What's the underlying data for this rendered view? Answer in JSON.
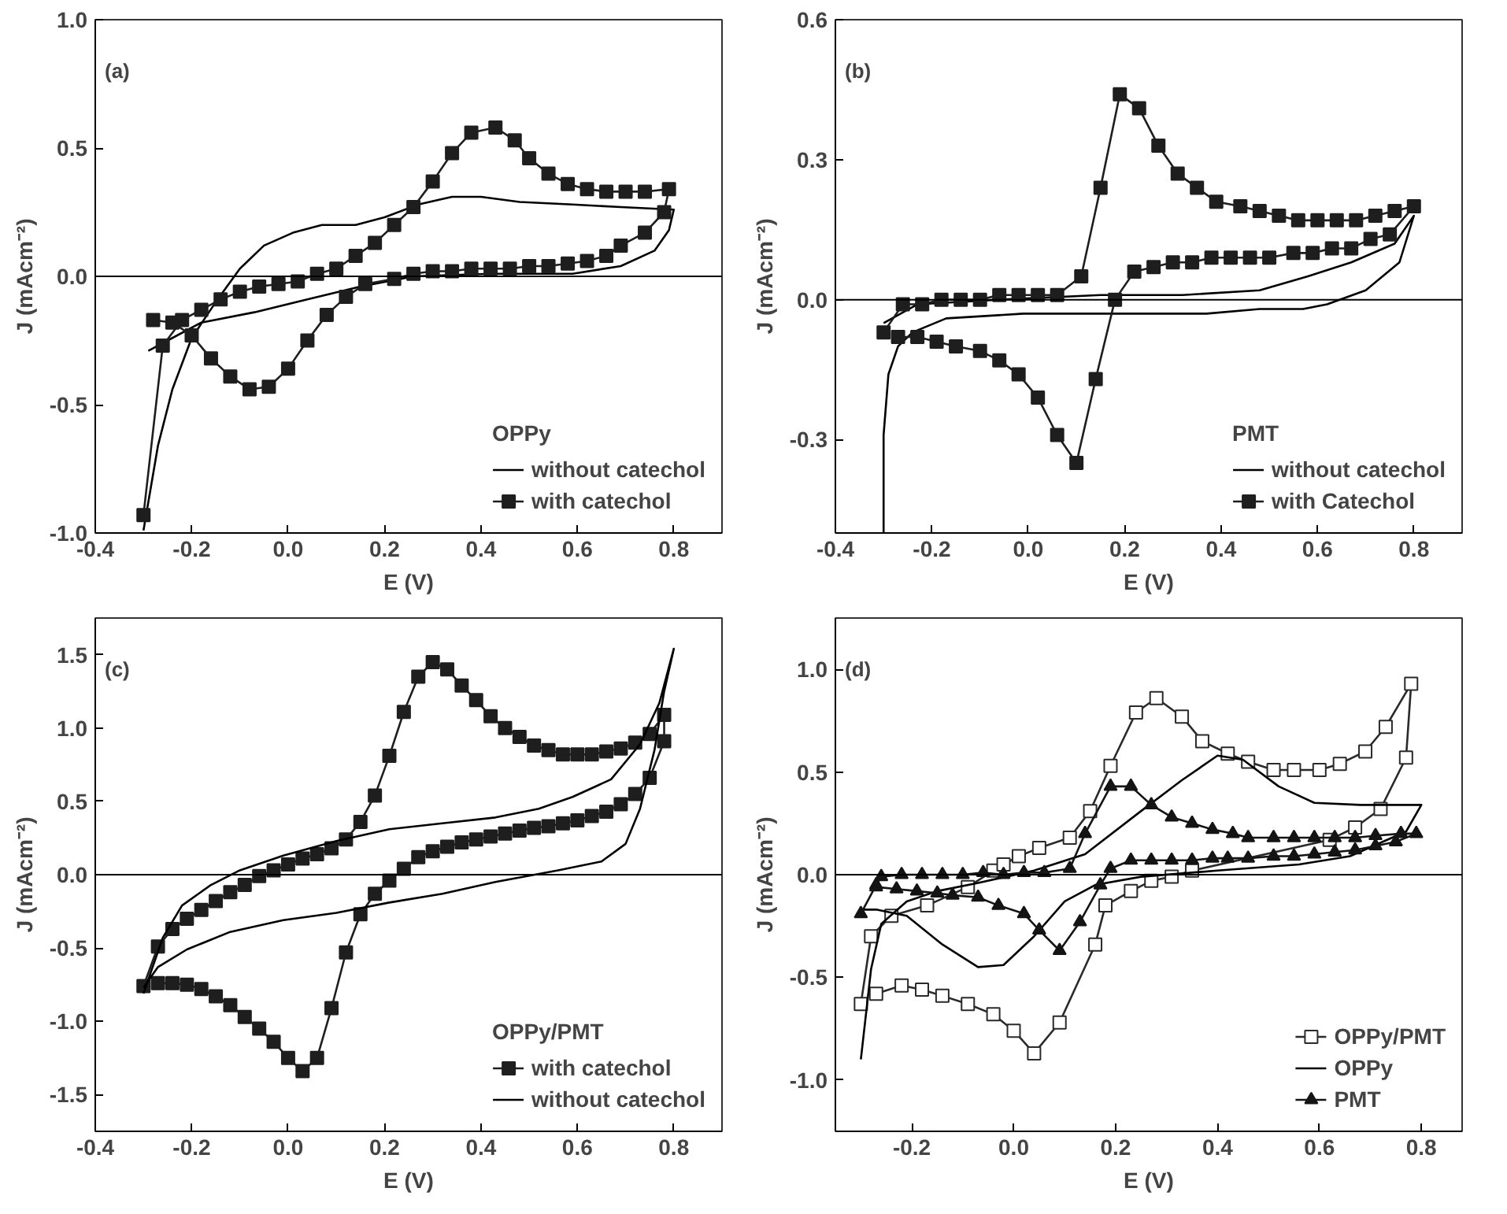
{
  "chart_data": [
    {
      "type": "line",
      "annotations": [
        "(a)"
      ],
      "xlabel": "E (V)",
      "ylabel": "J (mAcm⁻²)",
      "legend_title": "OPPy",
      "legend": "bottom right",
      "grid": false,
      "xlim": [
        -0.4,
        0.9
      ],
      "ylim": [
        -1.0,
        1.0
      ],
      "xticks": [
        {
          "value": -0.4,
          "label": "-0.4"
        },
        {
          "value": -0.2,
          "label": "-0.2"
        },
        {
          "value": 0,
          "label": "0.0"
        },
        {
          "value": 0.2,
          "label": "0.2"
        },
        {
          "value": 0.4,
          "label": "0.4"
        },
        {
          "value": 0.6,
          "label": "0.6"
        },
        {
          "value": 0.8,
          "label": "0.8"
        }
      ],
      "yticks": [
        {
          "value": -1,
          "label": "-1.0"
        },
        {
          "value": -0.5,
          "label": "-0.5"
        },
        {
          "value": 0,
          "label": "0.0"
        },
        {
          "value": 0.5,
          "label": "0.5"
        },
        {
          "value": 1,
          "label": "1.0"
        }
      ],
      "ref_lines": [
        {
          "axis": "y",
          "value": 0,
          "color": "#000000"
        }
      ],
      "series": [
        {
          "name": "without catechol",
          "color": "#000000",
          "marker": "none",
          "x": [
            -0.3,
            -0.27,
            -0.24,
            -0.2,
            -0.15,
            -0.1,
            -0.05,
            0.01,
            0.07,
            0.14,
            0.2,
            0.27,
            0.34,
            0.4,
            0.48,
            0.59,
            0.69,
            0.8,
            0.79,
            0.76,
            0.69,
            0.59,
            0.42,
            0.26,
            0.15,
            0.04,
            -0.07,
            -0.18,
            -0.24,
            -0.29
          ],
          "values": [
            -0.99,
            -0.66,
            -0.44,
            -0.24,
            -0.1,
            0.03,
            0.12,
            0.17,
            0.2,
            0.2,
            0.23,
            0.28,
            0.31,
            0.31,
            0.29,
            0.28,
            0.27,
            0.26,
            0.18,
            0.1,
            0.04,
            0.01,
            0.01,
            0.0,
            -0.04,
            -0.09,
            -0.14,
            -0.18,
            -0.24,
            -0.29
          ]
        },
        {
          "name": "with catechol",
          "color": "#1e1e1e",
          "marker": "square",
          "x": [
            -0.3,
            -0.26,
            -0.22,
            -0.18,
            -0.14,
            -0.1,
            -0.06,
            -0.02,
            0.02,
            0.06,
            0.1,
            0.14,
            0.18,
            0.22,
            0.26,
            0.3,
            0.34,
            0.38,
            0.43,
            0.47,
            0.5,
            0.54,
            0.58,
            0.62,
            0.66,
            0.7,
            0.74,
            0.79,
            0.78,
            0.74,
            0.69,
            0.66,
            0.62,
            0.58,
            0.54,
            0.5,
            0.46,
            0.42,
            0.38,
            0.34,
            0.3,
            0.26,
            0.22,
            0.16,
            0.12,
            0.08,
            0.04,
            0.0,
            -0.04,
            -0.08,
            -0.12,
            -0.16,
            -0.2,
            -0.24,
            -0.28
          ],
          "values": [
            -0.93,
            -0.27,
            -0.17,
            -0.13,
            -0.09,
            -0.06,
            -0.04,
            -0.03,
            -0.02,
            0.01,
            0.03,
            0.08,
            0.13,
            0.2,
            0.27,
            0.37,
            0.48,
            0.56,
            0.58,
            0.53,
            0.46,
            0.4,
            0.36,
            0.34,
            0.33,
            0.33,
            0.33,
            0.34,
            0.25,
            0.17,
            0.12,
            0.08,
            0.06,
            0.05,
            0.04,
            0.04,
            0.03,
            0.03,
            0.03,
            0.02,
            0.02,
            0.01,
            -0.01,
            -0.03,
            -0.08,
            -0.15,
            -0.25,
            -0.36,
            -0.43,
            -0.44,
            -0.39,
            -0.32,
            -0.23,
            -0.18,
            -0.17
          ]
        }
      ]
    },
    {
      "type": "line",
      "annotations": [
        "(b)"
      ],
      "xlabel": "E (V)",
      "ylabel": "J (mAcm⁻²)",
      "legend_title": "PMT",
      "legend": "bottom right",
      "grid": false,
      "xlim": [
        -0.4,
        0.9
      ],
      "ylim": [
        -0.5,
        0.6
      ],
      "xticks": [
        {
          "value": -0.4,
          "label": "-0.4"
        },
        {
          "value": -0.2,
          "label": "-0.2"
        },
        {
          "value": 0,
          "label": "0.0"
        },
        {
          "value": 0.2,
          "label": "0.2"
        },
        {
          "value": 0.4,
          "label": "0.4"
        },
        {
          "value": 0.6,
          "label": "0.6"
        },
        {
          "value": 0.8,
          "label": "0.8"
        }
      ],
      "yticks": [
        -0.3,
        {
          "value": 0,
          "label": "0.0"
        },
        0.3,
        0.6
      ],
      "ref_lines": [
        {
          "axis": "y",
          "value": 0,
          "color": "#000000"
        }
      ],
      "series": [
        {
          "name": "without catechol",
          "color": "#000000",
          "marker": "none",
          "x": [
            -0.3,
            -0.3,
            -0.29,
            -0.27,
            -0.24,
            -0.17,
            -0.01,
            0.21,
            0.37,
            0.48,
            0.57,
            0.62,
            0.7,
            0.77,
            0.8,
            0.76,
            0.67,
            0.58,
            0.48,
            0.32,
            0.15,
            -0.06,
            -0.23,
            -0.3
          ],
          "values": [
            -0.5,
            -0.29,
            -0.16,
            -0.1,
            -0.07,
            -0.04,
            -0.03,
            -0.03,
            -0.03,
            -0.02,
            -0.02,
            -0.01,
            0.02,
            0.08,
            0.18,
            0.12,
            0.08,
            0.05,
            0.02,
            0.01,
            0.01,
            0.0,
            -0.01,
            -0.05
          ]
        },
        {
          "name": "with Catechol",
          "color": "#1e1e1e",
          "marker": "square",
          "x": [
            -0.3,
            -0.26,
            -0.22,
            -0.18,
            -0.14,
            -0.1,
            -0.06,
            -0.02,
            0.02,
            0.06,
            0.11,
            0.15,
            0.19,
            0.23,
            0.27,
            0.31,
            0.35,
            0.39,
            0.44,
            0.48,
            0.52,
            0.56,
            0.6,
            0.64,
            0.68,
            0.72,
            0.76,
            0.8,
            0.75,
            0.71,
            0.67,
            0.63,
            0.59,
            0.55,
            0.5,
            0.46,
            0.42,
            0.38,
            0.34,
            0.3,
            0.26,
            0.22,
            0.18,
            0.14,
            0.1,
            0.06,
            0.02,
            -0.02,
            -0.06,
            -0.1,
            -0.15,
            -0.19,
            -0.23,
            -0.27
          ],
          "values": [
            -0.07,
            -0.01,
            -0.01,
            0.0,
            0.0,
            0.0,
            0.01,
            0.01,
            0.01,
            0.01,
            0.05,
            0.24,
            0.44,
            0.41,
            0.33,
            0.27,
            0.24,
            0.21,
            0.2,
            0.19,
            0.18,
            0.17,
            0.17,
            0.17,
            0.17,
            0.18,
            0.19,
            0.2,
            0.14,
            0.13,
            0.11,
            0.11,
            0.1,
            0.1,
            0.09,
            0.09,
            0.09,
            0.09,
            0.08,
            0.08,
            0.07,
            0.06,
            0.0,
            -0.17,
            -0.35,
            -0.29,
            -0.21,
            -0.16,
            -0.13,
            -0.11,
            -0.1,
            -0.09,
            -0.08,
            -0.08
          ]
        }
      ]
    },
    {
      "type": "line",
      "annotations": [
        "(c)"
      ],
      "xlabel": "E (V)",
      "ylabel": "J (mAcm⁻²)",
      "legend_title": "OPPy/PMT",
      "legend": "bottom right",
      "grid": false,
      "xlim": [
        -0.4,
        0.9
      ],
      "ylim": [
        -1.75,
        1.75
      ],
      "xticks": [
        {
          "value": -0.4,
          "label": "-0.4"
        },
        {
          "value": -0.2,
          "label": "-0.2"
        },
        {
          "value": 0,
          "label": "0.0"
        },
        {
          "value": 0.2,
          "label": "0.2"
        },
        {
          "value": 0.4,
          "label": "0.4"
        },
        {
          "value": 0.6,
          "label": "0.6"
        },
        {
          "value": 0.8,
          "label": "0.8"
        }
      ],
      "yticks": [
        -1.5,
        {
          "value": -1,
          "label": "-1.0"
        },
        -0.5,
        {
          "value": 0,
          "label": "0.0"
        },
        0.5,
        {
          "value": 1,
          "label": "1.0"
        },
        1.5
      ],
      "ref_lines": [
        {
          "axis": "y",
          "value": 0,
          "color": "#000000"
        }
      ],
      "series": [
        {
          "name": "with catechol",
          "color": "#1e1e1e",
          "marker": "square",
          "x": [
            -0.3,
            -0.27,
            -0.24,
            -0.21,
            -0.18,
            -0.15,
            -0.12,
            -0.09,
            -0.06,
            -0.03,
            0.0,
            0.03,
            0.06,
            0.09,
            0.12,
            0.15,
            0.18,
            0.21,
            0.24,
            0.27,
            0.3,
            0.33,
            0.36,
            0.39,
            0.42,
            0.45,
            0.48,
            0.51,
            0.54,
            0.57,
            0.6,
            0.63,
            0.66,
            0.69,
            0.72,
            0.75,
            0.78,
            0.78,
            0.75,
            0.72,
            0.69,
            0.66,
            0.63,
            0.6,
            0.57,
            0.54,
            0.51,
            0.48,
            0.45,
            0.42,
            0.39,
            0.36,
            0.33,
            0.3,
            0.27,
            0.24,
            0.21,
            0.18,
            0.15,
            0.12,
            0.09,
            0.06,
            0.03,
            0.0,
            -0.03,
            -0.06,
            -0.09,
            -0.12,
            -0.15,
            -0.18,
            -0.21,
            -0.24,
            -0.27
          ],
          "values": [
            -0.76,
            -0.49,
            -0.37,
            -0.3,
            -0.24,
            -0.18,
            -0.12,
            -0.07,
            -0.01,
            0.03,
            0.07,
            0.11,
            0.14,
            0.18,
            0.24,
            0.36,
            0.54,
            0.81,
            1.11,
            1.35,
            1.45,
            1.4,
            1.29,
            1.19,
            1.08,
            1.0,
            0.94,
            0.88,
            0.85,
            0.82,
            0.82,
            0.82,
            0.84,
            0.86,
            0.9,
            0.96,
            1.09,
            0.91,
            0.66,
            0.55,
            0.48,
            0.43,
            0.4,
            0.37,
            0.35,
            0.33,
            0.32,
            0.3,
            0.28,
            0.26,
            0.24,
            0.22,
            0.19,
            0.16,
            0.12,
            0.04,
            -0.04,
            -0.13,
            -0.27,
            -0.53,
            -0.91,
            -1.25,
            -1.34,
            -1.25,
            -1.14,
            -1.05,
            -0.97,
            -0.89,
            -0.83,
            -0.78,
            -0.75,
            -0.74,
            -0.74
          ]
        },
        {
          "name": "without catechol",
          "color": "#000000",
          "marker": "none",
          "x": [
            -0.3,
            -0.26,
            -0.22,
            -0.16,
            -0.1,
            -0.01,
            0.1,
            0.21,
            0.32,
            0.43,
            0.52,
            0.59,
            0.67,
            0.73,
            0.77,
            0.8,
            0.78,
            0.76,
            0.73,
            0.7,
            0.65,
            0.56,
            0.43,
            0.32,
            0.21,
            0.1,
            -0.01,
            -0.12,
            -0.21,
            -0.27,
            -0.3
          ],
          "values": [
            -0.81,
            -0.43,
            -0.21,
            -0.07,
            0.03,
            0.13,
            0.23,
            0.31,
            0.35,
            0.39,
            0.45,
            0.53,
            0.65,
            0.89,
            1.17,
            1.54,
            1.25,
            0.85,
            0.45,
            0.21,
            0.09,
            0.03,
            -0.05,
            -0.13,
            -0.19,
            -0.26,
            -0.31,
            -0.39,
            -0.51,
            -0.63,
            -0.77
          ]
        }
      ]
    },
    {
      "type": "line",
      "annotations": [
        "(d)"
      ],
      "xlabel": "E (V)",
      "ylabel": "J (mAcm⁻²)",
      "legend": "bottom right",
      "grid": false,
      "xlim": [
        -0.35,
        0.88
      ],
      "ylim": [
        -1.25,
        1.25
      ],
      "xticks": [
        {
          "value": -0.2,
          "label": "-0.2"
        },
        {
          "value": 0,
          "label": "0.0"
        },
        {
          "value": 0.2,
          "label": "0.2"
        },
        {
          "value": 0.4,
          "label": "0.4"
        },
        {
          "value": 0.6,
          "label": "0.6"
        },
        {
          "value": 0.8,
          "label": "0.8"
        }
      ],
      "yticks": [
        {
          "value": -1,
          "label": "-1.0"
        },
        -0.5,
        {
          "value": 0,
          "label": "0.0"
        },
        0.5,
        {
          "value": 1,
          "label": "1.0"
        }
      ],
      "ref_lines": [
        {
          "axis": "y",
          "value": 0,
          "color": "#000000"
        }
      ],
      "series": [
        {
          "name": "OPPy/PMT",
          "color": "#2a2a2a",
          "marker": "square_open",
          "x": [
            -0.3,
            -0.28,
            -0.24,
            -0.17,
            -0.09,
            -0.04,
            -0.02,
            0.01,
            0.05,
            0.11,
            0.15,
            0.19,
            0.24,
            0.28,
            0.33,
            0.37,
            0.42,
            0.46,
            0.51,
            0.55,
            0.6,
            0.64,
            0.69,
            0.73,
            0.78,
            0.77,
            0.72,
            0.67,
            0.62,
            0.35,
            0.31,
            0.27,
            0.23,
            0.18,
            0.16,
            0.09,
            0.04,
            0.0,
            -0.04,
            -0.09,
            -0.14,
            -0.18,
            -0.22,
            -0.27
          ],
          "values": [
            -0.63,
            -0.3,
            -0.2,
            -0.15,
            -0.06,
            0.02,
            0.05,
            0.09,
            0.13,
            0.18,
            0.31,
            0.53,
            0.79,
            0.86,
            0.77,
            0.65,
            0.59,
            0.55,
            0.51,
            0.51,
            0.51,
            0.54,
            0.6,
            0.72,
            0.93,
            0.57,
            0.32,
            0.23,
            0.17,
            0.02,
            -0.01,
            -0.03,
            -0.08,
            -0.15,
            -0.34,
            -0.72,
            -0.87,
            -0.76,
            -0.68,
            -0.63,
            -0.59,
            -0.56,
            -0.54,
            -0.58
          ]
        },
        {
          "name": "OPPy",
          "color": "#000000",
          "marker": "none",
          "x": [
            -0.3,
            -0.28,
            -0.26,
            -0.21,
            -0.15,
            -0.07,
            0.04,
            0.14,
            0.25,
            0.33,
            0.4,
            0.45,
            0.52,
            0.59,
            0.68,
            0.8,
            0.77,
            0.66,
            0.56,
            0.4,
            0.25,
            0.16,
            0.1,
            0.04,
            -0.02,
            -0.07,
            -0.14,
            -0.21,
            -0.27,
            -0.3
          ],
          "values": [
            -0.9,
            -0.46,
            -0.24,
            -0.13,
            -0.08,
            -0.04,
            0.02,
            0.1,
            0.31,
            0.46,
            0.58,
            0.56,
            0.43,
            0.35,
            0.34,
            0.34,
            0.21,
            0.09,
            0.05,
            0.02,
            -0.01,
            -0.05,
            -0.13,
            -0.3,
            -0.44,
            -0.45,
            -0.34,
            -0.2,
            -0.17,
            -0.17
          ]
        },
        {
          "name": "PMT",
          "color": "#141414",
          "marker": "triangle",
          "x": [
            -0.3,
            -0.27,
            -0.26,
            -0.22,
            -0.18,
            -0.14,
            -0.1,
            -0.06,
            -0.02,
            0.02,
            0.06,
            0.11,
            0.14,
            0.19,
            0.23,
            0.27,
            0.31,
            0.35,
            0.39,
            0.43,
            0.46,
            0.51,
            0.55,
            0.59,
            0.63,
            0.67,
            0.71,
            0.76,
            0.79,
            0.75,
            0.71,
            0.67,
            0.63,
            0.59,
            0.55,
            0.51,
            0.46,
            0.42,
            0.39,
            0.35,
            0.31,
            0.27,
            0.23,
            0.19,
            0.17,
            0.13,
            0.09,
            0.05,
            0.02,
            -0.03,
            -0.07,
            -0.12,
            -0.15,
            -0.19,
            -0.23,
            -0.27
          ],
          "values": [
            -0.19,
            -0.05,
            -0.01,
            0.0,
            0.0,
            0.0,
            0.0,
            0.01,
            0.0,
            0.01,
            0.01,
            0.03,
            0.2,
            0.43,
            0.43,
            0.34,
            0.28,
            0.25,
            0.22,
            0.2,
            0.18,
            0.18,
            0.18,
            0.18,
            0.18,
            0.18,
            0.19,
            0.2,
            0.2,
            0.16,
            0.14,
            0.12,
            0.11,
            0.1,
            0.09,
            0.09,
            0.08,
            0.08,
            0.08,
            0.07,
            0.07,
            0.07,
            0.07,
            0.03,
            -0.05,
            -0.23,
            -0.37,
            -0.27,
            -0.19,
            -0.15,
            -0.11,
            -0.1,
            -0.09,
            -0.08,
            -0.07,
            -0.06
          ]
        }
      ]
    }
  ]
}
